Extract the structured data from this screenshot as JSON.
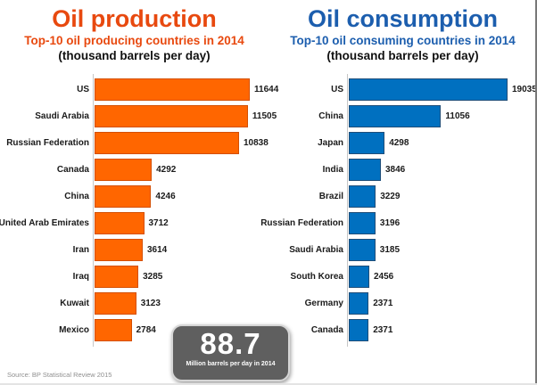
{
  "source_note": "Source: BP Statistical Review 2015",
  "badge": {
    "value": "88.7",
    "caption": "Million barrels per day in 2014",
    "bg_color": "#5f5f5f",
    "text_color": "#ffffff"
  },
  "chart_data": [
    {
      "type": "bar",
      "orientation": "horizontal",
      "title": "Oil production",
      "subtitle": "Top-10 oil producing countries in 2014",
      "unit_label": "(thousand barrels per day)",
      "categories": [
        "US",
        "Saudi Arabia",
        "Russian Federation",
        "Canada",
        "China",
        "United Arab Emirates",
        "Iran",
        "Iraq",
        "Kuwait",
        "Mexico"
      ],
      "values": [
        11644,
        11505,
        10838,
        4292,
        4246,
        3712,
        3614,
        3285,
        3123,
        2784
      ],
      "xlim": [
        0,
        11644
      ],
      "grid": false,
      "legend": "none",
      "data_labels": "outside-end",
      "title_color": "#E8490F",
      "bar_color": "#FF6600",
      "bar_border_color": "#D44F00"
    },
    {
      "type": "bar",
      "orientation": "horizontal",
      "title": "Oil consumption",
      "subtitle": "Top-10 oil consuming countries in 2014",
      "unit_label": "(thousand barrels per day)",
      "categories": [
        "US",
        "China",
        "Japan",
        "India",
        "Brazil",
        "Russian Federation",
        "Saudi Arabia",
        "South Korea",
        "Germany",
        "Canada"
      ],
      "values": [
        19035,
        11056,
        4298,
        3846,
        3229,
        3196,
        3185,
        2456,
        2371,
        2371
      ],
      "xlim": [
        0,
        19035
      ],
      "grid": false,
      "legend": "none",
      "data_labels": "outside-end",
      "title_color": "#1C5EAE",
      "bar_color": "#0070C0",
      "bar_border_color": "#1F4E79"
    }
  ]
}
